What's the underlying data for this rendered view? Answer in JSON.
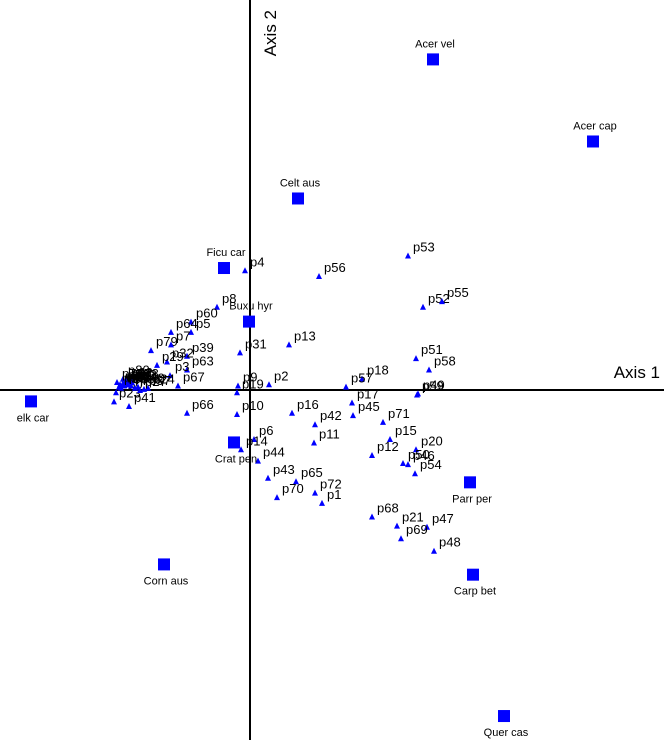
{
  "chart_data": {
    "type": "scatter",
    "xlabel": "Axis 1",
    "ylabel": "Axis 2",
    "grid": false,
    "legend": "none",
    "colors": {
      "points": "#0000ff",
      "axes": "#000000",
      "text": "#000000"
    },
    "species": [
      {
        "label": "Acer vel",
        "x": 1.83,
        "y": 2.9
      },
      {
        "label": "Acer cap",
        "x": 3.43,
        "y": 2.18
      },
      {
        "label": "Celt aus",
        "x": 0.48,
        "y": 1.68
      },
      {
        "label": "Ficu car",
        "x": -0.26,
        "y": 1.07
      },
      {
        "label": "Buxu hyr",
        "x": -0.01,
        "y": 0.6
      },
      {
        "label": "elk car",
        "x": -2.19,
        "y": -0.1
      },
      {
        "label": "Crat pen",
        "x": -0.16,
        "y": -0.46
      },
      {
        "label": "Parr per",
        "x": 2.2,
        "y": -0.81
      },
      {
        "label": "Carp bet",
        "x": 2.23,
        "y": -1.62
      },
      {
        "label": "Corn aus",
        "x": -0.86,
        "y": -1.53
      },
      {
        "label": "Quer cas",
        "x": 2.54,
        "y": -2.86
      }
    ],
    "sites": [
      {
        "label": "p53",
        "x": 1.58,
        "y": 1.18
      },
      {
        "label": "p56",
        "x": 0.69,
        "y": 1.0
      },
      {
        "label": "p4",
        "x": -0.05,
        "y": 1.05
      },
      {
        "label": "p52",
        "x": 1.73,
        "y": 0.73
      },
      {
        "label": "p55",
        "x": 1.92,
        "y": 0.78
      },
      {
        "label": "p8",
        "x": -0.33,
        "y": 0.73
      },
      {
        "label": "p60",
        "x": -0.59,
        "y": 0.6
      },
      {
        "label": "p5",
        "x": -0.59,
        "y": 0.51
      },
      {
        "label": "p13",
        "x": 0.39,
        "y": 0.4
      },
      {
        "label": "p31",
        "x": -0.1,
        "y": 0.33
      },
      {
        "label": "p51",
        "x": 1.66,
        "y": 0.28
      },
      {
        "label": "p58",
        "x": 1.79,
        "y": 0.18
      },
      {
        "label": "p18",
        "x": 1.12,
        "y": 0.1
      },
      {
        "label": "p57",
        "x": 0.96,
        "y": 0.03
      },
      {
        "label": "p2",
        "x": 0.19,
        "y": 0.05
      },
      {
        "label": "p9",
        "x": -0.12,
        "y": 0.04
      },
      {
        "label": "p19",
        "x": -0.13,
        "y": -0.02
      },
      {
        "label": "p49",
        "x": 1.68,
        "y": -0.03
      },
      {
        "label": "p59",
        "x": 1.67,
        "y": -0.04
      },
      {
        "label": "p17",
        "x": 1.02,
        "y": -0.11
      },
      {
        "label": "p16",
        "x": 0.42,
        "y": -0.2
      },
      {
        "label": "p45",
        "x": 1.03,
        "y": -0.22
      },
      {
        "label": "p71",
        "x": 1.33,
        "y": -0.28
      },
      {
        "label": "p42",
        "x": 0.65,
        "y": -0.3
      },
      {
        "label": "p6",
        "x": 0.04,
        "y": -0.43
      },
      {
        "label": "p10",
        "x": -0.13,
        "y": -0.21
      },
      {
        "label": "p66",
        "x": -0.63,
        "y": -0.2
      },
      {
        "label": "p15",
        "x": 1.4,
        "y": -0.43
      },
      {
        "label": "p11",
        "x": 0.64,
        "y": -0.46
      },
      {
        "label": "p12",
        "x": 1.22,
        "y": -0.57
      },
      {
        "label": "p20",
        "x": 1.66,
        "y": -0.52
      },
      {
        "label": "p14",
        "x": -0.09,
        "y": -0.52
      },
      {
        "label": "p44",
        "x": 0.08,
        "y": -0.62
      },
      {
        "label": "p50",
        "x": 1.53,
        "y": -0.64
      },
      {
        "label": "p46",
        "x": 1.58,
        "y": -0.65
      },
      {
        "label": "p54",
        "x": 1.65,
        "y": -0.73
      },
      {
        "label": "p43",
        "x": 0.18,
        "y": -0.77
      },
      {
        "label": "p65",
        "x": 0.46,
        "y": -0.8
      },
      {
        "label": "p70",
        "x": 0.27,
        "y": -0.94
      },
      {
        "label": "p72",
        "x": 0.65,
        "y": -0.9
      },
      {
        "label": "p1",
        "x": 0.72,
        "y": -0.99
      },
      {
        "label": "p68",
        "x": 1.22,
        "y": -1.11
      },
      {
        "label": "p21",
        "x": 1.47,
        "y": -1.19
      },
      {
        "label": "p47",
        "x": 1.77,
        "y": -1.2
      },
      {
        "label": "p69",
        "x": 1.51,
        "y": -1.3
      },
      {
        "label": "p48",
        "x": 1.84,
        "y": -1.41
      },
      {
        "label": "p64",
        "x": -0.79,
        "y": 0.51
      },
      {
        "label": "p79",
        "x": -0.99,
        "y": 0.35
      },
      {
        "label": "p7",
        "x": -0.79,
        "y": 0.4
      },
      {
        "label": "p39",
        "x": -0.63,
        "y": 0.3
      },
      {
        "label": "p32",
        "x": -0.83,
        "y": 0.25
      },
      {
        "label": "p29",
        "x": -0.93,
        "y": 0.22
      },
      {
        "label": "p63",
        "x": -0.63,
        "y": 0.18
      },
      {
        "label": "p3",
        "x": -0.8,
        "y": 0.13
      },
      {
        "label": "p67",
        "x": -0.72,
        "y": 0.04
      },
      {
        "label": "p80",
        "x": -1.27,
        "y": 0.1
      },
      {
        "label": "p30",
        "x": -1.34,
        "y": -0.02
      },
      {
        "label": "p41",
        "x": -1.21,
        "y": -0.14
      },
      {
        "label": "p23",
        "x": -1.36,
        "y": -0.1
      },
      {
        "label": "p61",
        "x": -1.23,
        "y": 0.06
      },
      {
        "label": "p24",
        "x": -1.02,
        "y": 0.02
      },
      {
        "label": "p27",
        "x": -1.1,
        "y": 0.0
      },
      {
        "label": "p77",
        "x": -1.33,
        "y": 0.07
      },
      {
        "label": "p74",
        "x": -1.19,
        "y": 0.04
      },
      {
        "label": "p73",
        "x": -1.3,
        "y": 0.05
      },
      {
        "label": "p38",
        "x": -1.15,
        "y": 0.02
      },
      {
        "label": "p75",
        "x": -1.25,
        "y": 0.05
      },
      {
        "label": "p34",
        "x": -1.28,
        "y": 0.04
      },
      {
        "label": "p37",
        "x": -1.06,
        "y": 0.01
      },
      {
        "label": "p33",
        "x": -1.2,
        "y": 0.06
      },
      {
        "label": "p36",
        "x": -1.29,
        "y": 0.02
      },
      {
        "label": "p62",
        "x": -1.24,
        "y": 0.08
      },
      {
        "label": "p76",
        "x": -1.27,
        "y": 0.06
      },
      {
        "label": "p78",
        "x": -1.18,
        "y": 0.07
      },
      {
        "label": "p40",
        "x": -1.12,
        "y": 0.03
      },
      {
        "label": "p28",
        "x": -1.31,
        "y": 0.03
      },
      {
        "label": "p26",
        "x": -1.22,
        "y": 0.05
      },
      {
        "label": "p22",
        "x": -1.26,
        "y": 0.04
      }
    ]
  }
}
